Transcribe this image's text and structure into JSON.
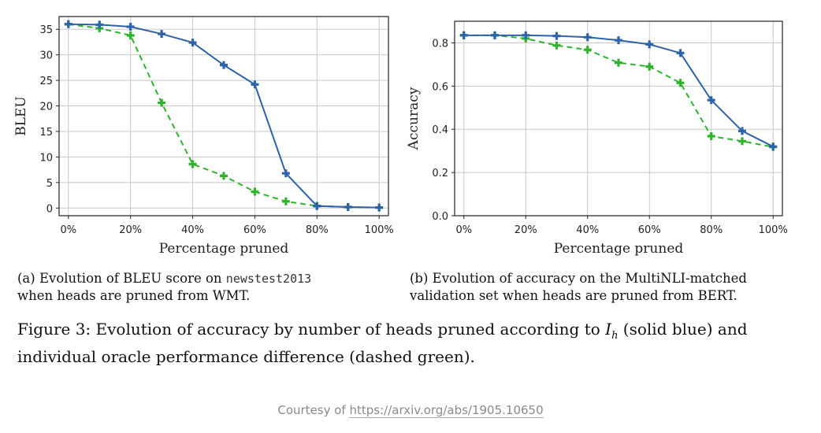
{
  "colors": {
    "solid": "#2f62a8",
    "dashed": "#2fb32f",
    "grid": "#c8c8c8"
  },
  "chart_data": [
    {
      "type": "line",
      "xlabel": "Percentage pruned",
      "ylabel": "BLEU",
      "x": [
        0,
        10,
        20,
        30,
        40,
        50,
        60,
        70,
        80,
        90,
        100
      ],
      "xticks": [
        0,
        20,
        40,
        60,
        80,
        100
      ],
      "xtick_labels": [
        "0%",
        "20%",
        "40%",
        "60%",
        "80%",
        "100%"
      ],
      "xlim": [
        -3,
        103
      ],
      "ylim": [
        -1.5,
        37.5
      ],
      "yticks": [
        0,
        5,
        10,
        15,
        20,
        25,
        30,
        35
      ],
      "ytick_labels": [
        "0",
        "5",
        "10",
        "15",
        "20",
        "25",
        "30",
        "35"
      ],
      "grid": true,
      "series": [
        {
          "style": "solid",
          "values": [
            36.0,
            35.9,
            35.5,
            34.1,
            32.4,
            28.0,
            24.2,
            6.8,
            0.4,
            0.2,
            0.1
          ]
        },
        {
          "style": "dashed",
          "values": [
            36.0,
            35.2,
            33.8,
            20.6,
            8.6,
            6.3,
            3.2,
            1.3,
            0.4,
            0.2,
            0.1
          ]
        }
      ]
    },
    {
      "type": "line",
      "xlabel": "Percentage pruned",
      "ylabel": "Accuracy",
      "x": [
        0,
        10,
        20,
        30,
        40,
        50,
        60,
        70,
        80,
        90,
        100
      ],
      "xticks": [
        0,
        20,
        40,
        60,
        80,
        100
      ],
      "xtick_labels": [
        "0%",
        "20%",
        "40%",
        "60%",
        "80%",
        "100%"
      ],
      "xlim": [
        -3,
        103
      ],
      "ylim": [
        0.0,
        0.9
      ],
      "yticks": [
        0.0,
        0.2,
        0.4,
        0.6,
        0.8
      ],
      "ytick_labels": [
        "0.0",
        "0.2",
        "0.4",
        "0.6",
        "0.8"
      ],
      "grid": true,
      "series": [
        {
          "style": "solid",
          "values": [
            0.835,
            0.835,
            0.835,
            0.832,
            0.826,
            0.812,
            0.793,
            0.753,
            0.535,
            0.392,
            0.32
          ]
        },
        {
          "style": "dashed",
          "values": [
            0.835,
            0.835,
            0.82,
            0.788,
            0.768,
            0.708,
            0.69,
            0.615,
            0.368,
            0.345,
            0.318
          ]
        }
      ]
    }
  ],
  "captions": {
    "a_prefix": "(a)  Evolution of BLEU score on ",
    "a_code": "newstest2013",
    "a_suffix": "when heads are pruned from WMT.",
    "b_line1": "(b)  Evolution of accuracy on the MultiNLI-matched",
    "b_line2": "validation set when heads are pruned from BERT.",
    "figure_prefix": "Figure 3: Evolution of accuracy by number of heads pruned according to ",
    "figure_math_base": "I",
    "figure_math_sub": "h",
    "figure_suffix": " (solid blue) and individual oracle performance difference (dashed green)."
  },
  "courtesy": {
    "prefix": "Courtesy of ",
    "link": "https://arxiv.org/abs/1905.10650"
  }
}
